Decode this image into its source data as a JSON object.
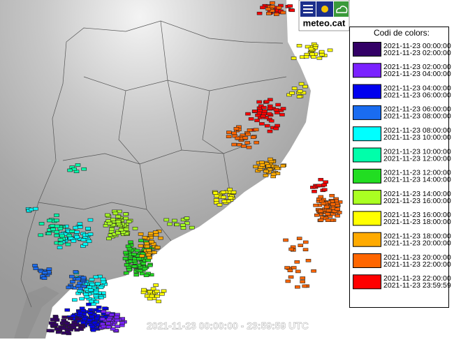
{
  "logo": {
    "text": "meteo.cat"
  },
  "footer": {
    "text": "2021-11-23 00:00:00 - 23:59:59 UTC"
  },
  "legend": {
    "title": "Codi de colors:",
    "entries": [
      {
        "color": "#330066",
        "from": "2021-11-23 00:00:00",
        "to": "2021-11-23 02:00:00"
      },
      {
        "color": "#7a22ff",
        "from": "2021-11-23 02:00:00",
        "to": "2021-11-23 04:00:00"
      },
      {
        "color": "#0000ee",
        "from": "2021-11-23 04:00:00",
        "to": "2021-11-23 06:00:00"
      },
      {
        "color": "#1a6cf0",
        "from": "2021-11-23 06:00:00",
        "to": "2021-11-23 08:00:00"
      },
      {
        "color": "#00ffff",
        "from": "2021-11-23 08:00:00",
        "to": "2021-11-23 10:00:00"
      },
      {
        "color": "#00ffaa",
        "from": "2021-11-23 10:00:00",
        "to": "2021-11-23 12:00:00"
      },
      {
        "color": "#22dd22",
        "from": "2021-11-23 12:00:00",
        "to": "2021-11-23 14:00:00"
      },
      {
        "color": "#aaff22",
        "from": "2021-11-23 14:00:00",
        "to": "2021-11-23 16:00:00"
      },
      {
        "color": "#ffff00",
        "from": "2021-11-23 16:00:00",
        "to": "2021-11-23 18:00:00"
      },
      {
        "color": "#ffaa00",
        "from": "2021-11-23 18:00:00",
        "to": "2021-11-23 20:00:00"
      },
      {
        "color": "#ff6600",
        "from": "2021-11-23 20:00:00",
        "to": "2021-11-23 22:00:00"
      },
      {
        "color": "#ff0000",
        "from": "2021-11-23 22:00:00",
        "to": "2021-11-23 23:59:59"
      }
    ]
  }
}
